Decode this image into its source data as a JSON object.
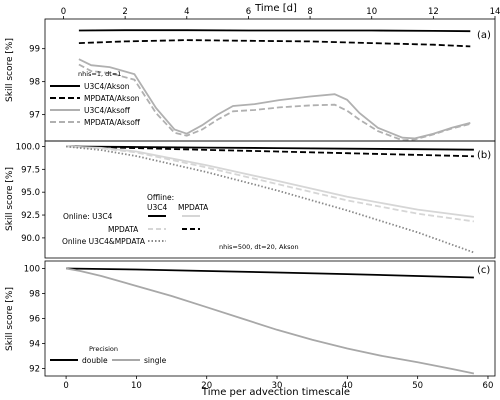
{
  "figure": {
    "top_xlabel": "Time [d]",
    "bottom_xlabel": "Time per advection timescale"
  },
  "chart_data": [
    {
      "type": "line",
      "panel_label": "(a)",
      "ylabel": "Skill score [%]",
      "ylim": [
        96.2,
        99.9
      ],
      "yticks": [
        "99",
        "98",
        "97"
      ],
      "ytick_values": [
        99,
        98,
        97
      ],
      "xlim": [
        -3,
        61
      ],
      "top_xlim": [
        -0.6,
        14
      ],
      "top_xticks": [
        "0",
        "2",
        "4",
        "6",
        "8",
        "10",
        "12",
        "14"
      ],
      "top_xtick_values": [
        0,
        2,
        4,
        6,
        8,
        10,
        12,
        14
      ],
      "legend": {
        "title": "nhis=1, dt=1",
        "placement": "center-left",
        "entries": [
          "U3C4/Akson",
          "MPDATA/Akson",
          "U3C4/Aksoff",
          "MPDATA/Aksoff"
        ]
      },
      "series": [
        {
          "name": "U3C4/Akson",
          "color": "#000000",
          "dash": "solid",
          "x": [
            0.5,
            2,
            4,
            6,
            8,
            10,
            12,
            13.2
          ],
          "y": [
            99.55,
            99.56,
            99.56,
            99.55,
            99.55,
            99.55,
            99.54,
            99.53
          ]
        },
        {
          "name": "MPDATA/Akson",
          "color": "#000000",
          "dash": "dashed",
          "x": [
            0.5,
            2,
            4,
            6,
            8,
            10,
            12,
            13.2
          ],
          "y": [
            99.17,
            99.22,
            99.26,
            99.24,
            99.22,
            99.17,
            99.12,
            99.07
          ]
        },
        {
          "name": "U3C4/Aksoff",
          "color": "#b0b0b0",
          "dash": "solid",
          "x": [
            0.5,
            0.9,
            1.5,
            2.3,
            3.0,
            3.6,
            4.0,
            4.5,
            5.0,
            5.5,
            6.2,
            7.0,
            8.0,
            8.8,
            9.2,
            9.6,
            10.2,
            11.0,
            11.4,
            12.0,
            12.6,
            13.2
          ],
          "y": [
            98.68,
            98.5,
            98.44,
            98.23,
            97.2,
            96.55,
            96.42,
            96.68,
            97.0,
            97.26,
            97.32,
            97.44,
            97.55,
            97.62,
            97.45,
            97.05,
            96.6,
            96.3,
            96.28,
            96.42,
            96.6,
            96.75
          ]
        },
        {
          "name": "MPDATA/Aksoff",
          "color": "#b0b0b0",
          "dash": "dashed",
          "x": [
            0.5,
            0.9,
            1.5,
            2.3,
            3.0,
            3.6,
            4.0,
            4.5,
            5.0,
            5.5,
            6.2,
            7.0,
            8.0,
            8.8,
            9.2,
            9.6,
            10.2,
            11.0,
            11.4,
            12.0,
            12.6,
            13.2
          ],
          "y": [
            98.52,
            98.32,
            98.26,
            98.06,
            97.05,
            96.45,
            96.36,
            96.55,
            96.85,
            97.1,
            97.14,
            97.22,
            97.28,
            97.3,
            97.12,
            96.85,
            96.5,
            96.22,
            96.25,
            96.4,
            96.58,
            96.72
          ]
        }
      ]
    },
    {
      "type": "line",
      "panel_label": "(b)",
      "ylabel": "Skill score [%]",
      "ylim": [
        87.8,
        100.6
      ],
      "yticks": [
        "100.0",
        "97.5",
        "95.0",
        "92.5",
        "90.0"
      ],
      "ytick_values": [
        100.0,
        97.5,
        95.0,
        92.5,
        90.0
      ],
      "xlim": [
        -3,
        61
      ],
      "legend": {
        "title": "Offline:",
        "placement": "center",
        "column_headers": [
          "U3C4",
          "MPDATA"
        ],
        "row_labels": [
          "Online:  U3C4",
          "MPDATA",
          "Online U3C4&MPDATA"
        ],
        "annotation": "nhis=500, dt=20, Akson"
      },
      "series": [
        {
          "name": "Online U3C4 / Offline U3C4",
          "color": "#000000",
          "dash": "solid",
          "x": [
            0,
            10,
            20,
            30,
            40,
            50,
            58
          ],
          "y": [
            100.0,
            99.94,
            99.88,
            99.82,
            99.76,
            99.7,
            99.65
          ]
        },
        {
          "name": "Online U3C4 / Offline MPDATA",
          "color": "#000000",
          "dash": "dashed",
          "x": [
            0,
            10,
            20,
            30,
            40,
            50,
            58
          ],
          "y": [
            100.0,
            99.82,
            99.63,
            99.45,
            99.27,
            99.08,
            98.93
          ]
        },
        {
          "name": "Online MPDATA / Offline U3C4",
          "color": "#d6d6d6",
          "dash": "solid",
          "x": [
            0,
            5,
            10,
            20,
            30,
            40,
            50,
            58
          ],
          "y": [
            100.0,
            99.85,
            99.45,
            97.95,
            96.25,
            94.5,
            93.1,
            92.3
          ]
        },
        {
          "name": "Online MPDATA / Offline MPDATA",
          "color": "#d6d6d6",
          "dash": "dashed",
          "x": [
            0,
            5,
            10,
            20,
            30,
            40,
            50,
            58
          ],
          "y": [
            100.0,
            99.8,
            99.35,
            97.7,
            95.9,
            94.1,
            92.65,
            91.8
          ]
        },
        {
          "name": "Online U3C4&MPDATA",
          "color": "#888888",
          "dash": "dotted",
          "x": [
            0,
            5,
            10,
            20,
            30,
            40,
            50,
            58
          ],
          "y": [
            100.0,
            99.6,
            98.95,
            97.2,
            95.2,
            93.0,
            90.6,
            88.4
          ]
        }
      ]
    },
    {
      "type": "line",
      "panel_label": "(c)",
      "ylabel": "Skill score [%]",
      "ylim": [
        91.4,
        100.6
      ],
      "yticks": [
        "100",
        "98",
        "96",
        "94",
        "92"
      ],
      "ytick_values": [
        100,
        98,
        96,
        94,
        92
      ],
      "xlim": [
        -3,
        61
      ],
      "xticks": [
        "0",
        "10",
        "20",
        "30",
        "40",
        "50",
        "60"
      ],
      "xtick_values": [
        0,
        10,
        20,
        30,
        40,
        50,
        60
      ],
      "legend": {
        "title": "Precision",
        "placement": "lower-left",
        "entries": [
          "double",
          "single"
        ]
      },
      "series": [
        {
          "name": "double",
          "color": "#000000",
          "dash": "solid",
          "x": [
            0,
            10,
            20,
            30,
            40,
            50,
            58
          ],
          "y": [
            100.0,
            99.92,
            99.8,
            99.68,
            99.55,
            99.4,
            99.28
          ]
        },
        {
          "name": "single",
          "color": "#a8a8a8",
          "dash": "solid",
          "x": [
            0,
            2,
            5,
            10,
            15,
            20,
            25,
            30,
            35,
            40,
            45,
            50,
            55,
            58
          ],
          "y": [
            100.0,
            99.8,
            99.4,
            98.6,
            97.8,
            96.9,
            96.0,
            95.1,
            94.3,
            93.6,
            93.0,
            92.5,
            91.95,
            91.6
          ]
        }
      ]
    }
  ]
}
